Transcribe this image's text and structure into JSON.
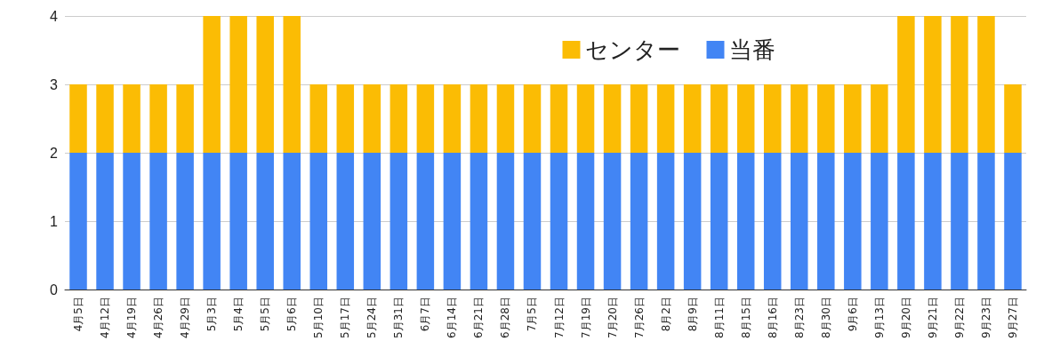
{
  "chart_data": {
    "type": "bar",
    "stacked": true,
    "categories": [
      "4月5日",
      "4月12日",
      "4月19日",
      "4月26日",
      "4月29日",
      "5月3日",
      "5月4日",
      "5月5日",
      "5月6日",
      "5月10日",
      "5月17日",
      "5月24日",
      "5月31日",
      "6月7日",
      "6月14日",
      "6月21日",
      "6月28日",
      "7月5日",
      "7月12日",
      "7月19日",
      "7月20日",
      "7月26日",
      "8月2日",
      "8月9日",
      "8月11日",
      "8月15日",
      "8月16日",
      "8月23日",
      "8月30日",
      "9月6日",
      "9月13日",
      "9月20日",
      "9月21日",
      "9月22日",
      "9月23日",
      "9月27日"
    ],
    "series": [
      {
        "name": "当番",
        "color": "#4285f4",
        "values": [
          2,
          2,
          2,
          2,
          2,
          2,
          2,
          2,
          2,
          2,
          2,
          2,
          2,
          2,
          2,
          2,
          2,
          2,
          2,
          2,
          2,
          2,
          2,
          2,
          2,
          2,
          2,
          2,
          2,
          2,
          2,
          2,
          2,
          2,
          2,
          2
        ]
      },
      {
        "name": "センター",
        "color": "#fbbc04",
        "values": [
          1,
          1,
          1,
          1,
          1,
          2,
          2,
          2,
          2,
          1,
          1,
          1,
          1,
          1,
          1,
          1,
          1,
          1,
          1,
          1,
          1,
          1,
          1,
          1,
          1,
          1,
          1,
          1,
          1,
          1,
          1,
          2,
          2,
          2,
          2,
          1
        ]
      }
    ],
    "ylim": [
      0,
      4
    ],
    "yticks": [
      0,
      1,
      2,
      3,
      4
    ],
    "grid": "y",
    "legend": "top right"
  }
}
